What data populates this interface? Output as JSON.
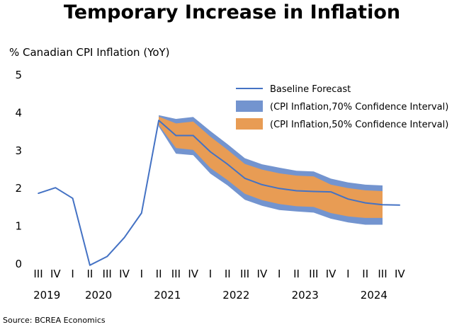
{
  "chart_data": {
    "type": "area",
    "title": "Temporary Increase in Inflation",
    "ylabel": "% Canadian CPI Inflation (YoY)",
    "source": "Source: BCREA Economics",
    "ylim": [
      0,
      5
    ],
    "yticks": [
      0,
      1,
      2,
      3,
      4,
      5
    ],
    "quarter_labels": [
      "III",
      "IV",
      "I",
      "II",
      "III",
      "IV",
      "I",
      "II",
      "III",
      "IV",
      "I",
      "II",
      "III",
      "IV",
      "I",
      "II",
      "III",
      "IV",
      "I",
      "II",
      "III",
      "IV"
    ],
    "year_labels": [
      {
        "label": "2019",
        "index": 0.5
      },
      {
        "label": "2020",
        "index": 3.5
      },
      {
        "label": "2021",
        "index": 7.5
      },
      {
        "label": "2022",
        "index": 11.5
      },
      {
        "label": "2023",
        "index": 15.5
      },
      {
        "label": "2024",
        "index": 19.5
      }
    ],
    "x": [
      "2019 Q3",
      "2019 Q4",
      "2020 Q1",
      "2020 Q2",
      "2020 Q3",
      "2020 Q4",
      "2021 Q1",
      "2021 Q2",
      "2021 Q3",
      "2021 Q4",
      "2022 Q1",
      "2022 Q2",
      "2022 Q3",
      "2022 Q4",
      "2023 Q1",
      "2023 Q2",
      "2023 Q3",
      "2023 Q4",
      "2024 Q1",
      "2024 Q2",
      "2024 Q3",
      "2024 Q4"
    ],
    "series": [
      {
        "name": "Baseline Forecast",
        "type": "line",
        "color": "#4472c4",
        "values": [
          1.85,
          2.0,
          1.72,
          -0.05,
          0.18,
          0.68,
          1.33,
          3.78,
          3.38,
          3.38,
          2.95,
          2.62,
          2.25,
          2.08,
          1.98,
          1.92,
          1.9,
          1.89,
          1.7,
          1.6,
          1.55,
          1.54
        ]
      },
      {
        "name": "(CPI Inflation,70% Confidence Interval)",
        "type": "band",
        "color": "#7394cf",
        "start_index": 7,
        "upper": [
          3.92,
          3.82,
          3.87,
          3.5,
          3.15,
          2.78,
          2.62,
          2.53,
          2.45,
          2.43,
          2.24,
          2.14,
          2.08,
          2.06
        ],
        "lower": [
          3.62,
          2.9,
          2.86,
          2.37,
          2.06,
          1.68,
          1.52,
          1.41,
          1.37,
          1.34,
          1.18,
          1.08,
          1.02,
          1.02
        ]
      },
      {
        "name": "(CPI Inflation,50% Confidence Interval)",
        "type": "band",
        "color": "#e89c54",
        "start_index": 7,
        "upper": [
          3.88,
          3.7,
          3.75,
          3.35,
          3.0,
          2.63,
          2.48,
          2.38,
          2.32,
          2.3,
          2.08,
          1.99,
          1.93,
          1.91
        ],
        "lower": [
          3.66,
          3.05,
          3.0,
          2.52,
          2.2,
          1.84,
          1.67,
          1.57,
          1.51,
          1.49,
          1.33,
          1.24,
          1.2,
          1.2
        ]
      }
    ],
    "legend_position": "top-right",
    "grid": false
  }
}
